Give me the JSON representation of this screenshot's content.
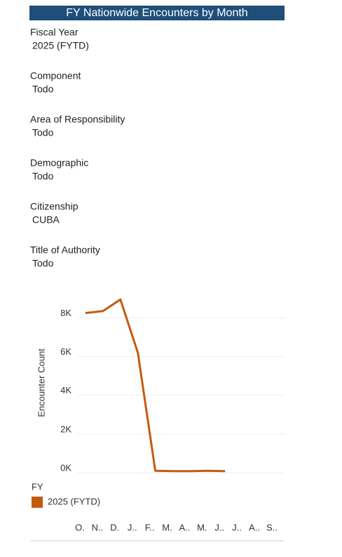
{
  "header": {
    "title": "FY Nationwide Encounters by Month"
  },
  "filters": [
    {
      "label": "Fiscal Year",
      "value": "2025 (FYTD)"
    },
    {
      "label": "Component",
      "value": "Todo"
    },
    {
      "label": "Area of Responsibility",
      "value": "Todo"
    },
    {
      "label": "Demographic",
      "value": "Todo"
    },
    {
      "label": "Citizenship",
      "value": "CUBA"
    },
    {
      "label": "Title of Authority",
      "value": "Todo"
    }
  ],
  "chart_data": {
    "type": "line",
    "y_label": "Encounter Count",
    "legend_title": "FY",
    "categories": [
      "O.",
      "N..",
      "D.",
      "J..",
      "F..",
      "M.",
      "A..",
      "M.",
      "J..",
      "J..",
      "A..",
      "S.."
    ],
    "series": [
      {
        "name": "2025 (FYTD)",
        "color": "#c55a11",
        "values": [
          8250,
          8350,
          8950,
          6200,
          100,
          80,
          80,
          100,
          80,
          null,
          null,
          null
        ]
      }
    ],
    "ylim": [
      0,
      9000
    ],
    "yticks": [
      {
        "value": 0,
        "label": "0K"
      },
      {
        "value": 2000,
        "label": "2K"
      },
      {
        "value": 4000,
        "label": "4K"
      },
      {
        "value": 6000,
        "label": "6K"
      },
      {
        "value": 8000,
        "label": "8K"
      }
    ],
    "grid": true
  }
}
